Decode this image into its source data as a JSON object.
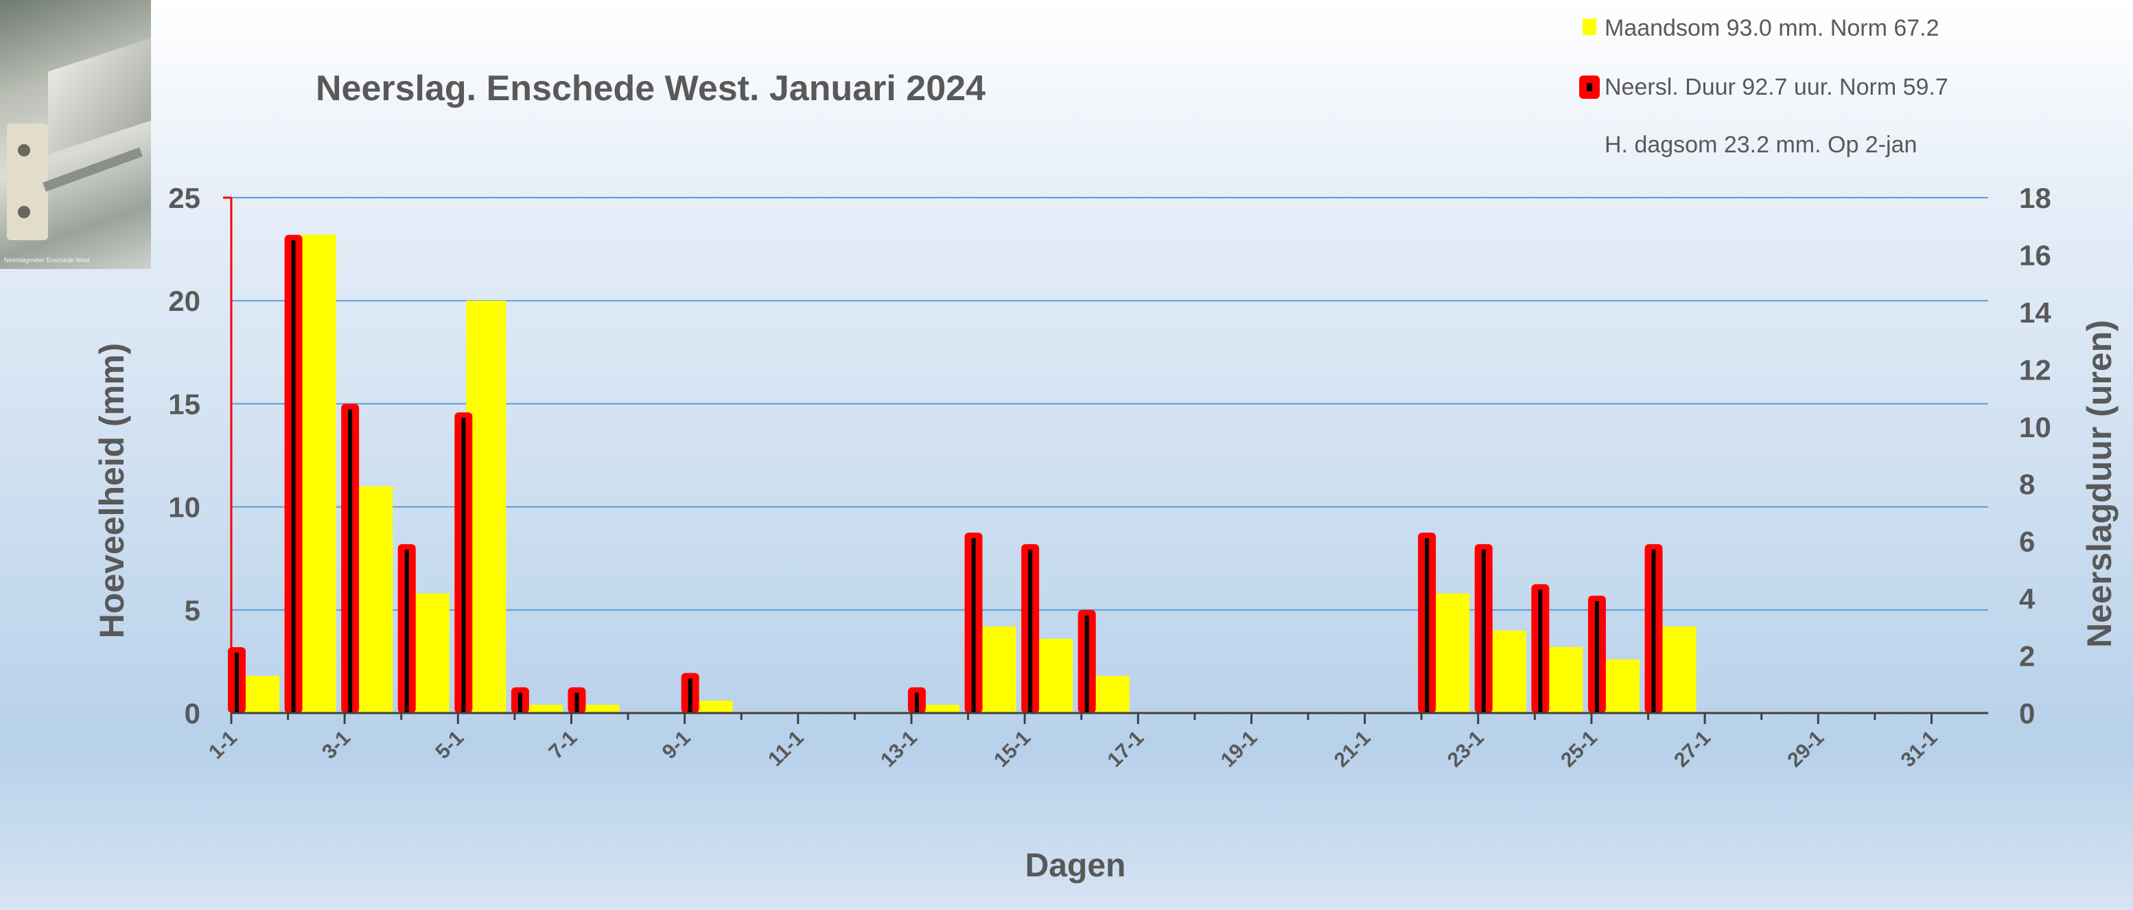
{
  "photo": {
    "caption": "Neerslagmeter Enschede West"
  },
  "legend": {
    "entries": [
      {
        "label": "Maandsom 93.0 mm. Norm 67.2",
        "color": "#ffff00"
      },
      {
        "label": "Neersl. Duur 92.7 uur. Norm 59.7",
        "color": "#ff0000"
      },
      {
        "label": "H. dagsom 23.2 mm.  Op  2-jan"
      }
    ]
  },
  "chart_data": {
    "type": "bar",
    "title": "Neerslag. Enschede West. Januari 2024",
    "xlabel": "Dagen",
    "ylabel": "Hoeveelheid (mm)",
    "y2label": "Neerslagduur (uren)",
    "ylim": [
      0,
      25
    ],
    "y2lim": [
      0,
      18
    ],
    "yticks": [
      0,
      5,
      10,
      15,
      20,
      25
    ],
    "y2ticks": [
      0,
      2,
      4,
      6,
      8,
      10,
      12,
      14,
      16,
      18
    ],
    "grid": true,
    "legend_position": "top-right",
    "categories": [
      "1-1",
      "2-1",
      "3-1",
      "4-1",
      "5-1",
      "6-1",
      "7-1",
      "8-1",
      "9-1",
      "10-1",
      "11-1",
      "12-1",
      "13-1",
      "14-1",
      "15-1",
      "16-1",
      "17-1",
      "18-1",
      "19-1",
      "20-1",
      "21-1",
      "22-1",
      "23-1",
      "24-1",
      "25-1",
      "26-1",
      "27-1",
      "28-1",
      "29-1",
      "30-1",
      "31-1"
    ],
    "xtick_labels": [
      "1-1",
      "3-1",
      "5-1",
      "7-1",
      "9-1",
      "11-1",
      "13-1",
      "15-1",
      "17-1",
      "19-1",
      "21-1",
      "23-1",
      "25-1",
      "27-1",
      "29-1",
      "31-1"
    ],
    "series": [
      {
        "name": "Maandsom",
        "axis": "left",
        "color": "#ffff00",
        "values": [
          1.8,
          23.2,
          11.0,
          5.8,
          20.0,
          0.4,
          0.4,
          0,
          0.6,
          0,
          0,
          0,
          0.4,
          4.2,
          3.6,
          1.8,
          0,
          0,
          0,
          0,
          0,
          5.8,
          4.0,
          3.2,
          2.6,
          4.2,
          0,
          0,
          0,
          0,
          0
        ]
      },
      {
        "name": "Neersl. Duur",
        "axis": "right",
        "color": "#ff0000",
        "values": [
          2.3,
          16.7,
          10.8,
          5.9,
          10.5,
          0.9,
          0.9,
          0,
          1.4,
          0,
          0,
          0,
          0.9,
          6.3,
          5.9,
          3.6,
          0,
          0,
          0,
          0,
          0,
          6.3,
          5.9,
          4.5,
          4.1,
          5.9,
          0,
          0,
          0,
          0,
          0
        ]
      }
    ]
  }
}
